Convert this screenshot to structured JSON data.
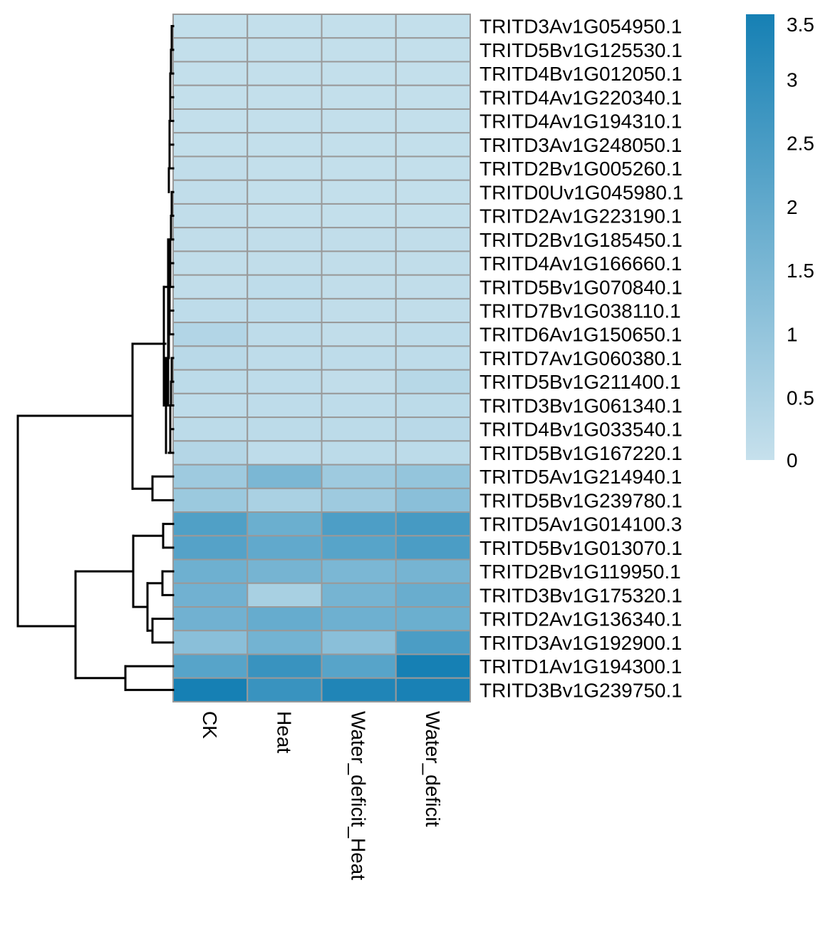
{
  "chart_data": {
    "type": "heatmap",
    "title": "",
    "xlabel": "",
    "ylabel": "",
    "columns": [
      "CK",
      "Heat",
      "Water_deficit_Heat",
      "Water_deficit"
    ],
    "rows": [
      "TRITD3Av1G054950.1",
      "TRITD5Bv1G125530.1",
      "TRITD4Bv1G012050.1",
      "TRITD4Av1G220340.1",
      "TRITD4Av1G194310.1",
      "TRITD3Av1G248050.1",
      "TRITD2Bv1G005260.1",
      "TRITD0Uv1G045980.1",
      "TRITD2Av1G223190.1",
      "TRITD2Bv1G185450.1",
      "TRITD4Av1G166660.1",
      "TRITD5Bv1G070840.1",
      "TRITD7Bv1G038110.1",
      "TRITD6Av1G150650.1",
      "TRITD7Av1G060380.1",
      "TRITD5Bv1G211400.1",
      "TRITD3Bv1G061340.1",
      "TRITD4Bv1G033540.1",
      "TRITD5Bv1G167220.1",
      "TRITD5Av1G214940.1",
      "TRITD5Bv1G239780.1",
      "TRITD5Av1G014100.3",
      "TRITD5Bv1G013070.1",
      "TRITD2Bv1G119950.1",
      "TRITD3Bv1G175320.1",
      "TRITD2Av1G136340.1",
      "TRITD3Av1G192900.1",
      "TRITD1Av1G194300.1",
      "TRITD3Bv1G239750.1"
    ],
    "values": [
      [
        0.05,
        0.05,
        0.05,
        0.05
      ],
      [
        0.05,
        0.05,
        0.05,
        0.05
      ],
      [
        0.05,
        0.05,
        0.05,
        0.05
      ],
      [
        0.05,
        0.05,
        0.05,
        0.05
      ],
      [
        0.05,
        0.05,
        0.05,
        0.05
      ],
      [
        0.05,
        0.05,
        0.05,
        0.05
      ],
      [
        0.1,
        0.05,
        0.05,
        0.05
      ],
      [
        0.1,
        0.05,
        0.05,
        0.05
      ],
      [
        0.1,
        0.05,
        0.05,
        0.05
      ],
      [
        0.1,
        0.1,
        0.1,
        0.1
      ],
      [
        0.1,
        0.1,
        0.1,
        0.1
      ],
      [
        0.1,
        0.15,
        0.1,
        0.1
      ],
      [
        0.15,
        0.15,
        0.1,
        0.1
      ],
      [
        0.4,
        0.15,
        0.1,
        0.15
      ],
      [
        0.25,
        0.15,
        0.15,
        0.15
      ],
      [
        0.2,
        0.15,
        0.1,
        0.3
      ],
      [
        0.15,
        0.15,
        0.15,
        0.2
      ],
      [
        0.2,
        0.2,
        0.2,
        0.25
      ],
      [
        0.35,
        0.15,
        0.2,
        0.2
      ],
      [
        0.8,
        1.5,
        0.8,
        1.0
      ],
      [
        0.85,
        0.55,
        0.8,
        1.2
      ],
      [
        2.35,
        1.8,
        2.4,
        2.55
      ],
      [
        2.25,
        2.0,
        2.2,
        2.45
      ],
      [
        1.75,
        1.6,
        1.5,
        1.6
      ],
      [
        1.7,
        0.6,
        1.6,
        1.85
      ],
      [
        1.7,
        1.9,
        1.75,
        1.8
      ],
      [
        1.2,
        1.65,
        1.2,
        2.45
      ],
      [
        2.2,
        2.8,
        2.2,
        3.5
      ],
      [
        3.5,
        2.8,
        3.3,
        3.45
      ]
    ],
    "legend": {
      "placement": "top-right",
      "ticks": [
        "3.5",
        "3",
        "2.5",
        "2",
        "1.5",
        "1",
        "0.5",
        "0"
      ],
      "range": [
        0,
        3.5
      ],
      "color_low": "#c6e0ec",
      "color_high": "#1680b4"
    },
    "dendrogram": "rows",
    "cell_border_color": "#999999"
  }
}
